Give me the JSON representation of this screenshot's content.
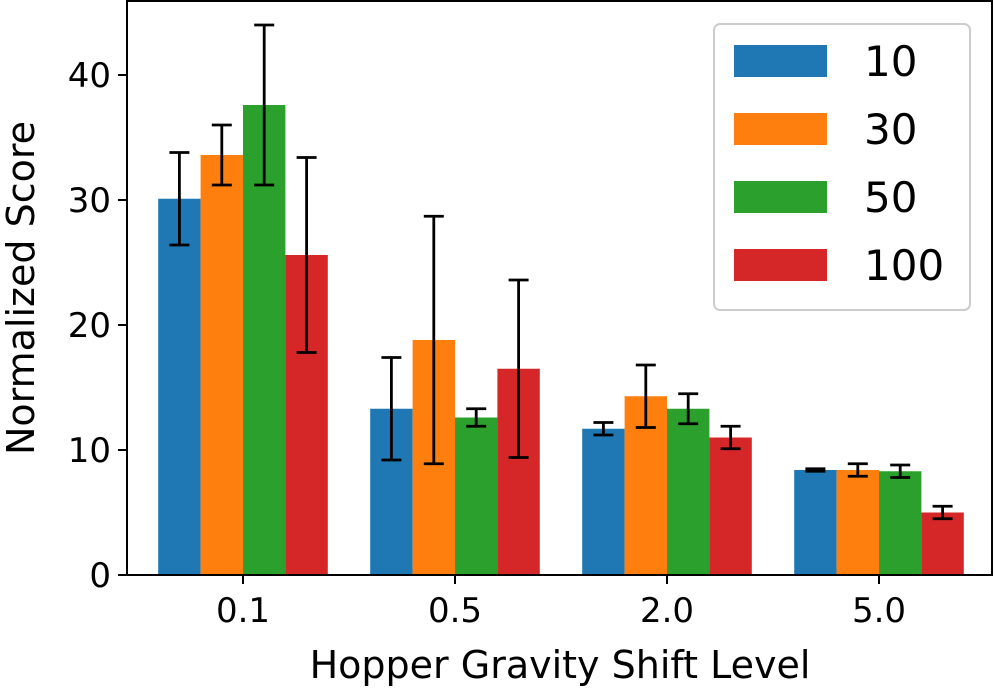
{
  "chart_data": {
    "type": "bar",
    "title": "",
    "xlabel": "Hopper Gravity Shift Level",
    "ylabel": "Normalized Score",
    "categories": [
      "0.1",
      "0.5",
      "2.0",
      "5.0"
    ],
    "ylim": [
      0,
      46
    ],
    "yticks": [
      0,
      10,
      20,
      30,
      40
    ],
    "grid": false,
    "legend_position": "top-right",
    "series": [
      {
        "name": "10",
        "color": "#1f77b4",
        "values": [
          30.1,
          13.3,
          11.7,
          8.4
        ],
        "errors": [
          3.7,
          4.1,
          0.5,
          0.1
        ]
      },
      {
        "name": "30",
        "color": "#ff7f0e",
        "values": [
          33.6,
          18.8,
          14.3,
          8.4
        ],
        "errors": [
          2.4,
          9.9,
          2.5,
          0.5
        ]
      },
      {
        "name": "50",
        "color": "#2ca02c",
        "values": [
          37.6,
          12.6,
          13.3,
          8.3
        ],
        "errors": [
          6.4,
          0.7,
          1.2,
          0.5
        ]
      },
      {
        "name": "100",
        "color": "#d62728",
        "values": [
          25.6,
          16.5,
          11.0,
          5.0
        ],
        "errors": [
          7.8,
          7.1,
          0.9,
          0.5
        ]
      }
    ]
  }
}
